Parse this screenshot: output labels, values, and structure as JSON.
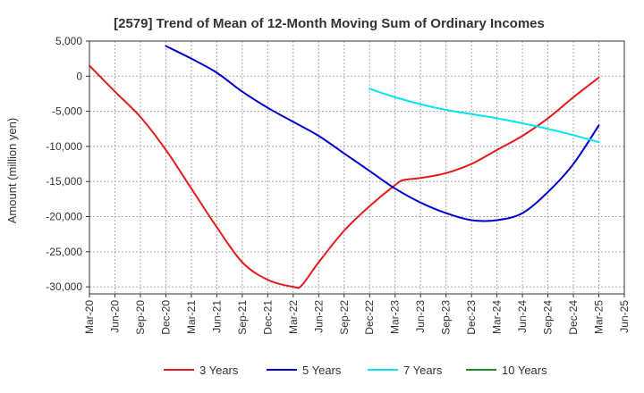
{
  "chart_data": {
    "type": "line",
    "title": "[2579]  Trend of Mean of 12-Month Moving Sum of Ordinary Incomes",
    "xlabel": "",
    "ylabel": "Amount (million yen)",
    "ylim": [
      -31000,
      5000
    ],
    "yticks": [
      5000,
      0,
      -5000,
      -10000,
      -15000,
      -20000,
      -25000,
      -30000
    ],
    "ytick_labels": [
      "5,000",
      "0",
      "-5,000",
      "-10,000",
      "-15,000",
      "-20,000",
      "-25,000",
      "-30,000"
    ],
    "xticks": [
      "Mar-20",
      "Jun-20",
      "Sep-20",
      "Dec-20",
      "Mar-21",
      "Jun-21",
      "Sep-21",
      "Dec-21",
      "Mar-22",
      "Jun-22",
      "Sep-22",
      "Dec-22",
      "Mar-23",
      "Jun-23",
      "Sep-23",
      "Dec-23",
      "Mar-24",
      "Jun-24",
      "Sep-24",
      "Dec-24",
      "Mar-25",
      "Jun-25"
    ],
    "grid": true,
    "legend_position": "bottom",
    "series": [
      {
        "name": "3 Years",
        "color": "#e41a1c",
        "x": [
          "Mar-20",
          "Jun-20",
          "Sep-20",
          "Dec-20",
          "Mar-21",
          "Jun-21",
          "Sep-21",
          "Dec-21",
          "Mar-22",
          "Apr-22",
          "Jun-22",
          "Sep-22",
          "Dec-22",
          "Mar-23",
          "Apr-23",
          "Jun-23",
          "Sep-23",
          "Dec-23",
          "Mar-24",
          "Jun-24",
          "Sep-24",
          "Dec-24",
          "Mar-25"
        ],
        "values": [
          1500,
          -2200,
          -5800,
          -10500,
          -16000,
          -21500,
          -26500,
          -29000,
          -30000,
          -29800,
          -26500,
          -22000,
          -18500,
          -15500,
          -14800,
          -14500,
          -13800,
          -12500,
          -10500,
          -8500,
          -6000,
          -3000,
          -200
        ]
      },
      {
        "name": "5 Years",
        "color": "#0000cd",
        "x": [
          "Dec-20",
          "Mar-21",
          "Jun-21",
          "Sep-21",
          "Dec-21",
          "Mar-22",
          "Jun-22",
          "Sep-22",
          "Dec-22",
          "Mar-23",
          "Jun-23",
          "Sep-23",
          "Dec-23",
          "Mar-24",
          "Jun-24",
          "Sep-24",
          "Dec-24",
          "Mar-25"
        ],
        "values": [
          4300,
          2500,
          500,
          -2200,
          -4500,
          -6500,
          -8500,
          -11000,
          -13500,
          -16000,
          -18000,
          -19500,
          -20500,
          -20500,
          -19500,
          -16500,
          -12500,
          -7000
        ]
      },
      {
        "name": "7 Years",
        "color": "#00e5ee",
        "x": [
          "Dec-22",
          "Mar-23",
          "Jun-23",
          "Sep-23",
          "Dec-23",
          "Mar-24",
          "Jun-24",
          "Sep-24",
          "Dec-24",
          "Mar-25"
        ],
        "values": [
          -1800,
          -3000,
          -4000,
          -4800,
          -5400,
          -6000,
          -6700,
          -7500,
          -8400,
          -9400
        ]
      },
      {
        "name": "10 Years",
        "color": "#228b22",
        "x": [],
        "values": []
      }
    ]
  }
}
